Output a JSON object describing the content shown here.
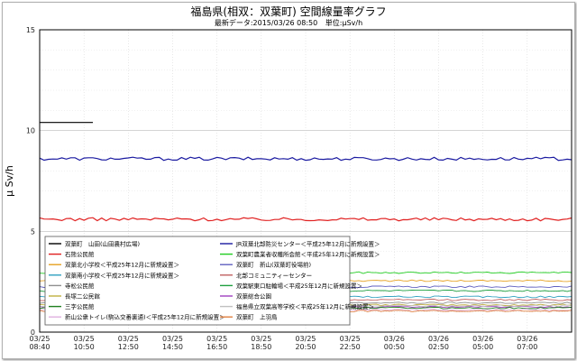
{
  "title": "福島県(相双：双葉町) 空間線量率グラフ",
  "latest_label": "最新データ:2015/03/26 08:50",
  "unit_label": "単位:μSv/h",
  "chart_data": {
    "type": "line",
    "ylabel": "μ Sv/h",
    "xlabel": "",
    "ylim": [
      0,
      15
    ],
    "yticks": [
      0,
      5,
      10,
      15
    ],
    "xticks": [
      {
        "date": "03/25",
        "time": "08:40"
      },
      {
        "date": "03/25",
        "time": "10:50"
      },
      {
        "date": "03/25",
        "time": "12:50"
      },
      {
        "date": "03/25",
        "time": "14:50"
      },
      {
        "date": "03/25",
        "time": "16:50"
      },
      {
        "date": "03/25",
        "time": "18:50"
      },
      {
        "date": "03/25",
        "time": "20:50"
      },
      {
        "date": "03/25",
        "time": "22:50"
      },
      {
        "date": "03/26",
        "time": "00:50"
      },
      {
        "date": "03/26",
        "time": "02:50"
      },
      {
        "date": "03/26",
        "time": "05:00"
      },
      {
        "date": "03/26",
        "time": "07:00"
      }
    ],
    "grid": true,
    "legend_placement": "bottom-left",
    "series": [
      {
        "name": "双葉町　山田(山田農村広場)",
        "color": "#000000",
        "level": 10.4,
        "t_end": 0.1
      },
      {
        "name": "JR双葉北部防災センター＜平成25年12月に新規設置＞",
        "color": "#1a1aa0",
        "level": 8.6
      },
      {
        "name": "石熊公民館",
        "color": "#e02020",
        "level": 5.6
      },
      {
        "name": "双葉町農業者収穫所会館＜平成25年12月に新規設置＞",
        "color": "#22cc22",
        "level": 2.95
      },
      {
        "name": "双葉北小学校＜平成25年12月に新規設置＞",
        "color": "#e6a020",
        "level": 2.55
      },
      {
        "name": "双葉町　新山(双葉町役場前)",
        "color": "#6060c0",
        "level": 2.25
      },
      {
        "name": "双葉南小学校＜平成25年12月に新規設置＞",
        "color": "#30a0c0",
        "level": 1.75
      },
      {
        "name": "北部コミュニティーセンター",
        "color": "#c06060",
        "level": 1.6
      },
      {
        "name": "寺松公民館",
        "color": "#909090",
        "level": 1.45
      },
      {
        "name": "双葉駅東口駐輪場＜平成25年12月に新規設置＞",
        "color": "#20a040",
        "level": 2.05
      },
      {
        "name": "長塚二公民館",
        "color": "#c0b040",
        "level": 1.35
      },
      {
        "name": "双葉総合公園",
        "color": "#a040c0",
        "level": 1.25
      },
      {
        "name": "三字公民館",
        "color": "#208020",
        "level": 1.2
      },
      {
        "name": "福島県立双葉高等学校＜平成25年12月に新規設置＞",
        "color": "#c0c0c0",
        "level": 1.3
      },
      {
        "name": "新山公衆トイレ(駒込交番裏通)＜平成25年12月に新規設置＞",
        "color": "#e0b0e0",
        "level": 1.1
      },
      {
        "name": "双葉町　上羽鳥",
        "color": "#e08040",
        "level": 1.05
      }
    ]
  }
}
